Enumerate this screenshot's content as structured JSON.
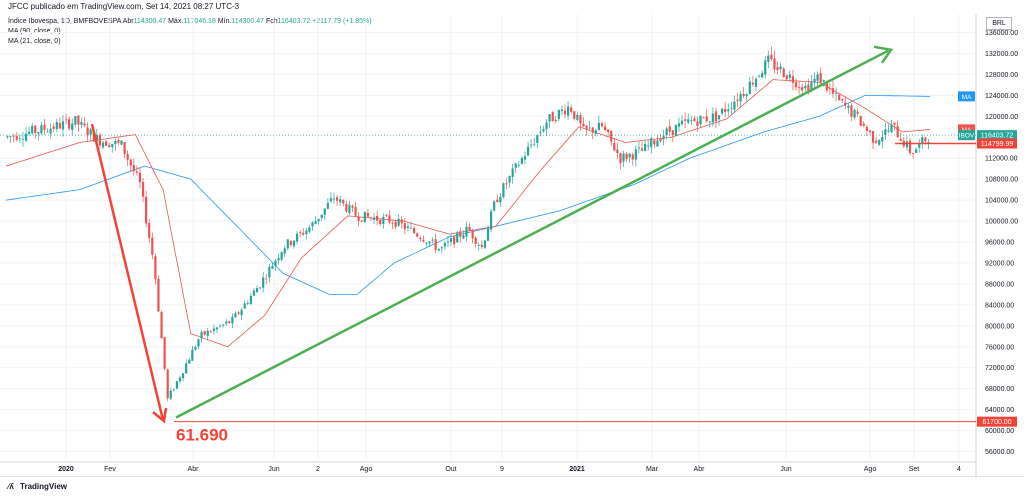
{
  "header": {
    "title": "JFCC publicado em TradingView.com, Set 14, 2021 08:27 UTC-3"
  },
  "legend": {
    "symbol": "Índice Ibovespa, 1D, BMFBOVESPA",
    "open_label": "Abr",
    "open": "114300.47",
    "high_label": "Máx.",
    "high": "117046.18",
    "low_label": "Mín.",
    "low": "114300.47",
    "close_label": "Fch",
    "close": "116403.72",
    "change": "+2117.79 (+1.85%)",
    "ma90": "MA (90, close, 0)",
    "ma21": "MA (21, close, 0)"
  },
  "colors": {
    "up": "#26a69a",
    "down": "#ef5350",
    "ma90": "#2196f3",
    "ma21": "#ef5350",
    "trend_up": "#4caf50",
    "arrow_down": "#f44336",
    "grid": "#f0f3fa",
    "axis_text": "#131722"
  },
  "footer": {
    "brand": "TradingView"
  },
  "chart_data": {
    "type": "candlestick",
    "title": "Índice Ibovespa, 1D, BMFBOVESPA",
    "currency": "BRL",
    "ylim": [
      54000,
      138000
    ],
    "y_ticks": [
      "136000.00",
      "132000.00",
      "128000.00",
      "124000.00",
      "120000.00",
      "112000.00",
      "108000.00",
      "104000.00",
      "100000.00",
      "96000.00",
      "92000.00",
      "88000.00",
      "84000.00",
      "80000.00",
      "76000.00",
      "72000.00",
      "68000.00",
      "64000.00",
      "60000.00",
      "56000.00"
    ],
    "x_ticks": [
      "2020",
      "Fev",
      "Abr",
      "Jun",
      "2",
      "Ago",
      "Out",
      "9",
      "2021",
      "Mar",
      "Abr",
      "Jun",
      "Ago",
      "Set",
      "4"
    ],
    "price_path": [
      {
        "t": 0,
        "v": 116000
      },
      {
        "t": 0.04,
        "v": 117500
      },
      {
        "t": 0.075,
        "v": 119000
      },
      {
        "t": 0.1,
        "v": 115500
      },
      {
        "t": 0.125,
        "v": 114500
      },
      {
        "t": 0.145,
        "v": 107000
      },
      {
        "t": 0.16,
        "v": 92000
      },
      {
        "t": 0.175,
        "v": 66000
      },
      {
        "t": 0.19,
        "v": 71000
      },
      {
        "t": 0.21,
        "v": 78000
      },
      {
        "t": 0.245,
        "v": 81000
      },
      {
        "t": 0.275,
        "v": 88000
      },
      {
        "t": 0.3,
        "v": 95000
      },
      {
        "t": 0.33,
        "v": 99000
      },
      {
        "t": 0.355,
        "v": 104500
      },
      {
        "t": 0.38,
        "v": 101000
      },
      {
        "t": 0.42,
        "v": 100000
      },
      {
        "t": 0.455,
        "v": 96500
      },
      {
        "t": 0.47,
        "v": 94500
      },
      {
        "t": 0.5,
        "v": 98500
      },
      {
        "t": 0.515,
        "v": 95000
      },
      {
        "t": 0.53,
        "v": 104000
      },
      {
        "t": 0.555,
        "v": 111000
      },
      {
        "t": 0.585,
        "v": 119000
      },
      {
        "t": 0.61,
        "v": 122000
      },
      {
        "t": 0.625,
        "v": 117000
      },
      {
        "t": 0.645,
        "v": 118000
      },
      {
        "t": 0.665,
        "v": 112000
      },
      {
        "t": 0.69,
        "v": 113500
      },
      {
        "t": 0.71,
        "v": 116500
      },
      {
        "t": 0.74,
        "v": 119000
      },
      {
        "t": 0.77,
        "v": 120000
      },
      {
        "t": 0.8,
        "v": 125000
      },
      {
        "t": 0.825,
        "v": 130500
      },
      {
        "t": 0.845,
        "v": 128000
      },
      {
        "t": 0.865,
        "v": 125500
      },
      {
        "t": 0.88,
        "v": 127500
      },
      {
        "t": 0.9,
        "v": 123000
      },
      {
        "t": 0.92,
        "v": 120000
      },
      {
        "t": 0.94,
        "v": 115500
      },
      {
        "t": 0.96,
        "v": 118000
      },
      {
        "t": 0.98,
        "v": 113000
      },
      {
        "t": 1.0,
        "v": 116400
      }
    ],
    "ma90_path": [
      {
        "t": 0,
        "v": 104000
      },
      {
        "t": 0.08,
        "v": 106000
      },
      {
        "t": 0.15,
        "v": 110500
      },
      {
        "t": 0.2,
        "v": 108000
      },
      {
        "t": 0.25,
        "v": 99000
      },
      {
        "t": 0.3,
        "v": 90000
      },
      {
        "t": 0.35,
        "v": 86000
      },
      {
        "t": 0.38,
        "v": 86000
      },
      {
        "t": 0.42,
        "v": 92000
      },
      {
        "t": 0.48,
        "v": 97000
      },
      {
        "t": 0.53,
        "v": 99000
      },
      {
        "t": 0.6,
        "v": 102000
      },
      {
        "t": 0.68,
        "v": 107000
      },
      {
        "t": 0.74,
        "v": 112000
      },
      {
        "t": 0.82,
        "v": 117000
      },
      {
        "t": 0.88,
        "v": 120000
      },
      {
        "t": 0.93,
        "v": 124000
      },
      {
        "t": 1.0,
        "v": 123800
      }
    ],
    "ma21_path": [
      {
        "t": 0,
        "v": 110500
      },
      {
        "t": 0.08,
        "v": 115000
      },
      {
        "t": 0.14,
        "v": 116500
      },
      {
        "t": 0.17,
        "v": 106000
      },
      {
        "t": 0.2,
        "v": 78500
      },
      {
        "t": 0.24,
        "v": 76000
      },
      {
        "t": 0.28,
        "v": 82000
      },
      {
        "t": 0.32,
        "v": 93000
      },
      {
        "t": 0.37,
        "v": 101000
      },
      {
        "t": 0.43,
        "v": 100000
      },
      {
        "t": 0.48,
        "v": 97500
      },
      {
        "t": 0.53,
        "v": 99000
      },
      {
        "t": 0.58,
        "v": 110000
      },
      {
        "t": 0.62,
        "v": 118000
      },
      {
        "t": 0.67,
        "v": 115000
      },
      {
        "t": 0.72,
        "v": 116000
      },
      {
        "t": 0.78,
        "v": 119500
      },
      {
        "t": 0.83,
        "v": 127000
      },
      {
        "t": 0.88,
        "v": 126500
      },
      {
        "t": 0.93,
        "v": 121500
      },
      {
        "t": 0.97,
        "v": 117000
      },
      {
        "t": 1.0,
        "v": 117500
      }
    ],
    "price_labels": [
      {
        "label": "MA",
        "value": 123800,
        "color": "#2196f3"
      },
      {
        "label": "MA",
        "value": 117500,
        "color": "#ef5350"
      },
      {
        "label": "IBOV",
        "value": 116400,
        "color": "#26a69a",
        "price": "116403.72"
      },
      {
        "label": "",
        "value": 114799.99,
        "color": "#f44336",
        "price": "114799.99"
      },
      {
        "label": "",
        "value": 61700,
        "color": "#f44336",
        "price": "61700.00"
      }
    ],
    "annotations": {
      "low_value": "61.690",
      "support_level": 61700,
      "support_level_2": 114799.99
    },
    "grid": true
  }
}
